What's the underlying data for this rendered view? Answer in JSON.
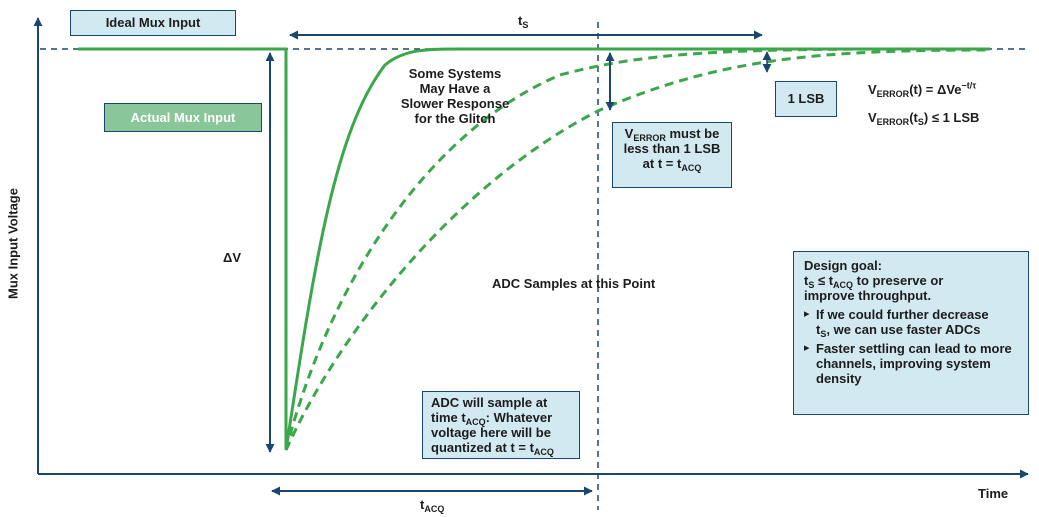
{
  "axes": {
    "y_label": "Mux Input Voltage",
    "x_label": "Time"
  },
  "legend": {
    "ideal": "Ideal Mux Input",
    "actual": "Actual Mux Input"
  },
  "labels": {
    "ts": "t",
    "ts_sub": "S",
    "tacq": "t",
    "tacq_sub": "ACQ",
    "delta_v": "ΔV",
    "lsb": "1 LSB",
    "adc_samples": "ADC Samples at this Point",
    "slower_response": [
      "Some Systems",
      "May Have a",
      "Slower Response",
      "for the Glitch"
    ]
  },
  "equations": {
    "line1_v": "V",
    "line1_sub": "ERROR",
    "line1_rest": "(t) = ΔVe",
    "line1_exp": "−t/τ",
    "line2_v": "V",
    "line2_sub": "ERROR",
    "line2_mid": "(t",
    "line2_mid_sub": "S",
    "line2_rest": ") ≤ 1 LSB"
  },
  "verror_box": {
    "l1_a": "V",
    "l1_sub": "ERROR",
    "l1_b": " must be",
    "l2": "less than 1 LSB",
    "l3_a": "at t = t",
    "l3_sub": "ACQ"
  },
  "adc_box": {
    "l1": "ADC will sample at",
    "l2_a": "time t",
    "l2_sub": "ACQ",
    "l2_b": ": Whatever",
    "l3": "voltage here will be",
    "l4_a": "quantized at t = t",
    "l4_sub": "ACQ"
  },
  "design_box": {
    "title": "Design goal:",
    "l2_a": "t",
    "l2_sub1": "S",
    "l2_b": " ≤ t",
    "l2_sub2": "ACQ",
    "l2_c": " to preserve or",
    "l3": "improve throughput.",
    "b1_a": "If we could further decrease",
    "b1_b": "t",
    "b1_sub": "S",
    "b1_c": ", we can use faster ADCs",
    "b2": "Faster settling can lead to more channels, improving system density"
  },
  "colors": {
    "axis": "#1a476e",
    "green": "#3aa84a",
    "box_fill": "#d3e9f2",
    "green_box_fill": "#89c79a",
    "text": "#1c1c1c"
  }
}
